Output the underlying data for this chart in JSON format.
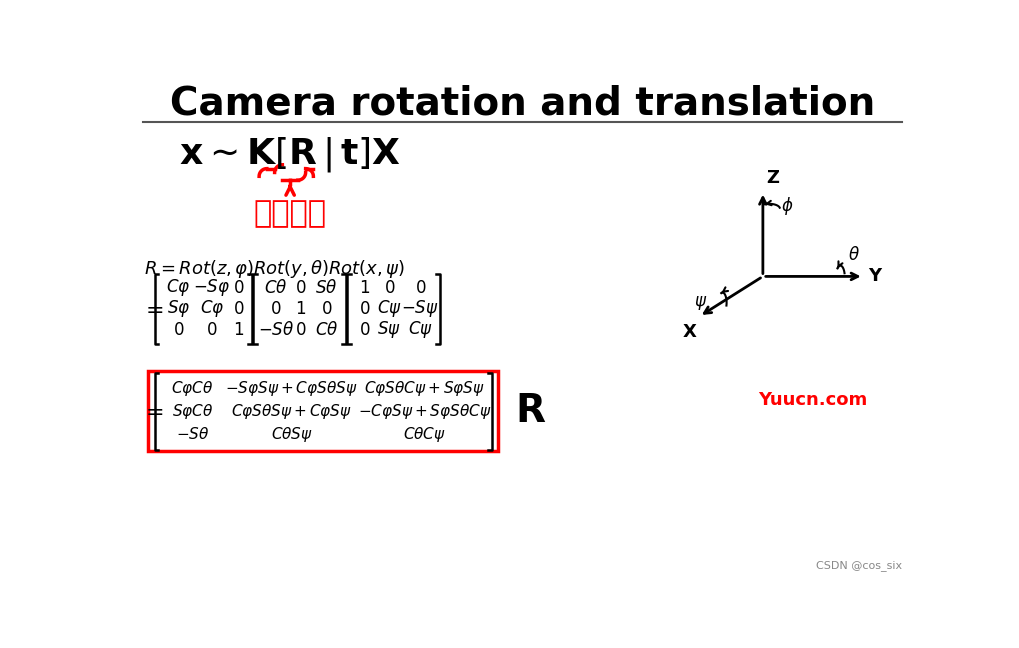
{
  "title": "Camera rotation and translation",
  "title_fontsize": 28,
  "title_fontweight": "bold",
  "bg_color": "#ffffff",
  "text_color": "#000000",
  "red_color": "#ff0000",
  "chinese_label": "外参矩阵",
  "watermark": "Yuucn.com",
  "footer": "CSDN @cos_six"
}
